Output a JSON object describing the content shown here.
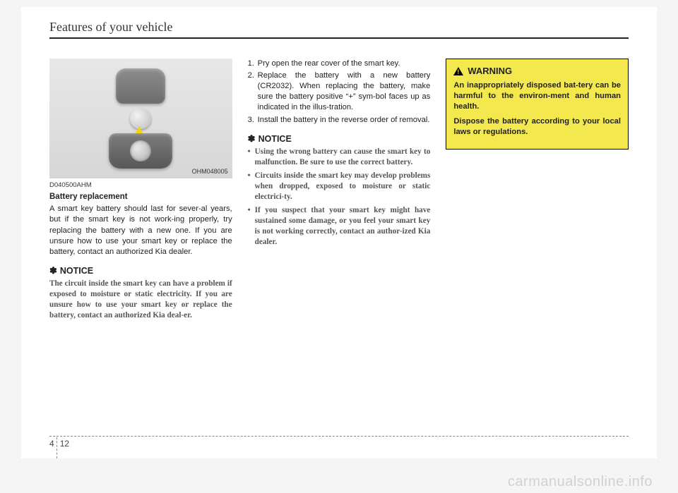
{
  "header_title": "Features of your vehicle",
  "figure_code": "OHM048005",
  "img_code": "D040500AHM",
  "subhead": "Battery replacement",
  "intro": "A smart key battery should last for sever-al years, but if the smart key is not work-ing properly, try replacing the battery with a new one. If you are unsure how to use your smart key or replace the battery, contact an authorized Kia dealer.",
  "notice_label": "NOTICE",
  "notice_star": "✽",
  "notice1": "The circuit inside the smart key can have a problem if exposed to moisture or static electricity. If you are unsure how to use your smart key or replace the battery, contact an authorized Kia deal-er.",
  "steps": [
    "Pry open the rear cover of the smart key.",
    "Replace the battery with a new battery (CR2032). When replacing the battery, make sure the battery positive “+” sym-bol faces up as indicated in the illus-tration.",
    "Install the battery in the reverse order of removal."
  ],
  "bullets": [
    "Using the wrong battery can cause the smart key to malfunction. Be sure to use the correct battery.",
    "Circuits inside the smart key may develop problems when dropped, exposed to moisture or static electrici-ty.",
    "If you suspect that your smart key might have sustained some damage, or you feel your smart key is not working correctly, contact an author-ized Kia dealer."
  ],
  "warning_label": "WARNING",
  "warning_p1": "An inappropriately disposed bat-tery can be harmful to the environ-ment and human health.",
  "warning_p2": "Dispose the battery according to your local laws or regulations.",
  "chapter": "4",
  "page": "12",
  "watermark": "carmanualsonline.info",
  "colors": {
    "warning_bg": "#f3e84e",
    "rule": "#222222",
    "notice_text": "#555555"
  }
}
